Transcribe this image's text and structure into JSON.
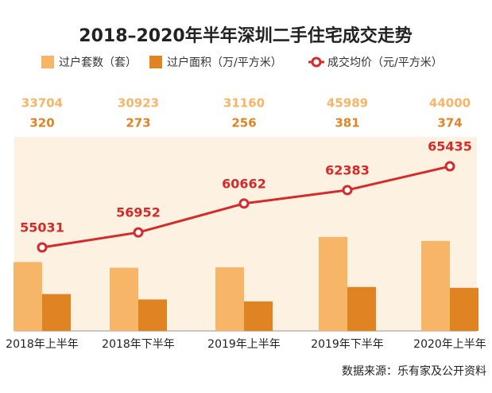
{
  "chart_data": {
    "type": "bar",
    "title": "2018–2020年半年深圳二手住宅成交走势",
    "categories": [
      "2018年上半年",
      "2018年下半年",
      "2019年上半年",
      "2019年下半年",
      "2020年上半年"
    ],
    "series": [
      {
        "name": "过户套数（套）",
        "color": "#f7b567",
        "values": [
          33704,
          30923,
          31160,
          45989,
          44000
        ]
      },
      {
        "name": "过户面积（万/平方米）",
        "color": "#e08423",
        "values": [
          320,
          273,
          256,
          381,
          374
        ]
      },
      {
        "name": "成交均价（元/平方米）",
        "color": "#d42a2a",
        "type": "line",
        "values": [
          55031,
          56952,
          60662,
          62383,
          65435
        ]
      }
    ],
    "source": "数据来源：乐有家及公开资料"
  }
}
